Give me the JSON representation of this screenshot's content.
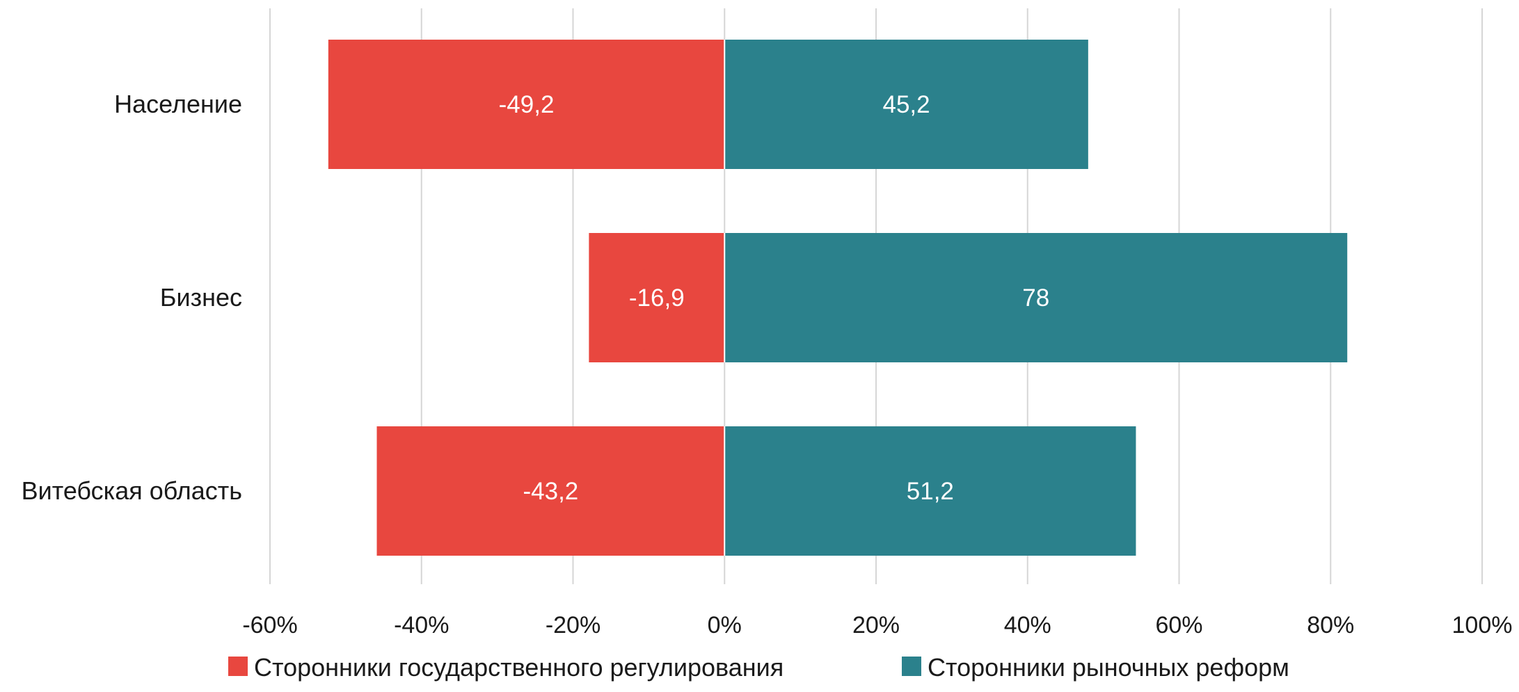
{
  "chart_data": {
    "type": "bar",
    "orientation": "horizontal",
    "stacked": "diverging",
    "categories": [
      "Население",
      "Бизнес",
      "Витебская область"
    ],
    "series": [
      {
        "name": "Сторонники государственного регулирования",
        "values": [
          -52.3,
          -17.9,
          -45.9
        ],
        "labels": [
          "-49,2",
          "-16,9",
          "-43,2"
        ],
        "color": "#e8473f"
      },
      {
        "name": "Сторонники рыночных реформ",
        "values": [
          48.0,
          82.2,
          54.3
        ],
        "labels": [
          "45,2",
          "78",
          "51,2"
        ],
        "color": "#2b818c"
      }
    ],
    "xlim": [
      -60,
      100
    ],
    "xticks": [
      -60,
      -40,
      -20,
      0,
      20,
      40,
      60,
      80,
      100
    ],
    "xtick_labels": [
      "-60%",
      "-40%",
      "-20%",
      "0%",
      "20%",
      "40%",
      "60%",
      "80%",
      "100%"
    ],
    "grid": true,
    "legend_position": "bottom"
  }
}
